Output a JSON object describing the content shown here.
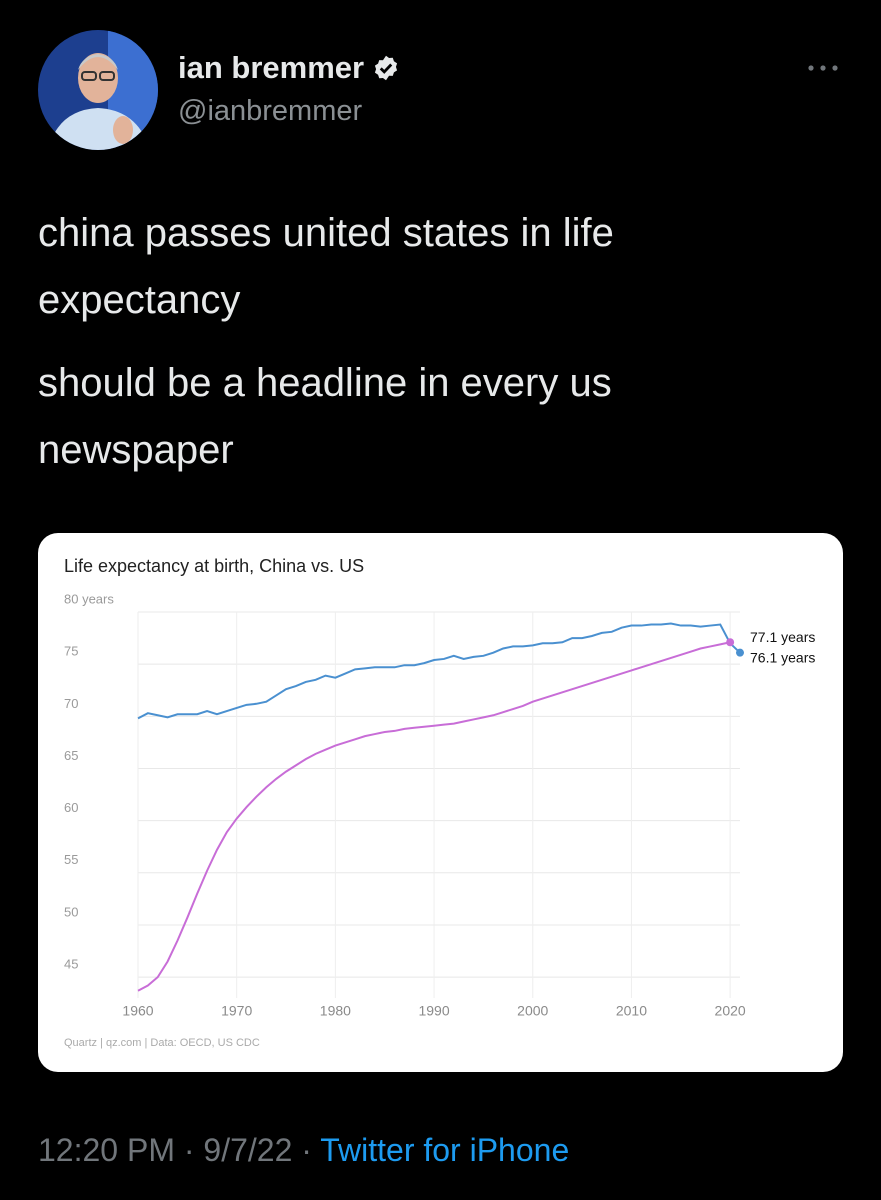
{
  "tweet": {
    "name": "ian bremmer",
    "handle": "@ianbremmer",
    "paragraphs": [
      "china passes united states in life expectancy",
      "should be a headline in every us newspaper"
    ],
    "time": "12:20 PM",
    "separator": "·",
    "date": "9/7/22",
    "source_app": "Twitter for iPhone"
  },
  "chart_data": {
    "type": "line",
    "title": "Life expectancy at birth, China vs. US",
    "source": "Quartz | qz.com | Data: OECD, US CDC",
    "x": [
      1960,
      1961,
      1962,
      1963,
      1964,
      1965,
      1966,
      1967,
      1968,
      1969,
      1970,
      1971,
      1972,
      1973,
      1974,
      1975,
      1976,
      1977,
      1978,
      1979,
      1980,
      1981,
      1982,
      1983,
      1984,
      1985,
      1986,
      1987,
      1988,
      1989,
      1990,
      1991,
      1992,
      1993,
      1994,
      1995,
      1996,
      1997,
      1998,
      1999,
      2000,
      2001,
      2002,
      2003,
      2004,
      2005,
      2006,
      2007,
      2008,
      2009,
      2010,
      2011,
      2012,
      2013,
      2014,
      2015,
      2016,
      2017,
      2018,
      2019,
      2020,
      2021
    ],
    "series": [
      {
        "color": "#4a90d0",
        "values": [
          69.8,
          70.3,
          70.1,
          69.9,
          70.2,
          70.2,
          70.2,
          70.5,
          70.2,
          70.5,
          70.8,
          71.1,
          71.2,
          71.4,
          72.0,
          72.6,
          72.9,
          73.3,
          73.5,
          73.9,
          73.7,
          74.1,
          74.5,
          74.6,
          74.7,
          74.7,
          74.7,
          74.9,
          74.9,
          75.1,
          75.4,
          75.5,
          75.8,
          75.5,
          75.7,
          75.8,
          76.1,
          76.5,
          76.7,
          76.7,
          76.8,
          77.0,
          77.0,
          77.1,
          77.5,
          77.5,
          77.7,
          78.0,
          78.1,
          78.5,
          78.7,
          78.7,
          78.8,
          78.8,
          78.9,
          78.7,
          78.7,
          78.6,
          78.7,
          78.8,
          77.0,
          76.1
        ],
        "value_labels": [
          null,
          null,
          null,
          null,
          null,
          null,
          null,
          null,
          null,
          null,
          null,
          null,
          null,
          null,
          null,
          null,
          null,
          null,
          null,
          null,
          null,
          null,
          null,
          null,
          null,
          null,
          null,
          null,
          null,
          null,
          null,
          null,
          null,
          null,
          null,
          null,
          null,
          null,
          null,
          null,
          null,
          null,
          null,
          null,
          null,
          null,
          null,
          null,
          null,
          null,
          null,
          null,
          null,
          null,
          null,
          null,
          null,
          null,
          null,
          null,
          null,
          "76.1 years"
        ]
      },
      {
        "color": "#c86dd7",
        "values": [
          43.7,
          44.2,
          45.0,
          46.5,
          48.5,
          50.7,
          53.0,
          55.2,
          57.2,
          58.9,
          60.2,
          61.3,
          62.3,
          63.2,
          64.0,
          64.7,
          65.3,
          65.9,
          66.4,
          66.8,
          67.2,
          67.5,
          67.8,
          68.1,
          68.3,
          68.5,
          68.6,
          68.8,
          68.9,
          69.0,
          69.1,
          69.2,
          69.3,
          69.5,
          69.7,
          69.9,
          70.1,
          70.4,
          70.7,
          71.0,
          71.4,
          71.7,
          72.0,
          72.3,
          72.6,
          72.9,
          73.2,
          73.5,
          73.8,
          74.1,
          74.4,
          74.7,
          75.0,
          75.3,
          75.6,
          75.9,
          76.2,
          76.5,
          76.7,
          76.9,
          77.1,
          null
        ],
        "value_labels": [
          null,
          null,
          null,
          null,
          null,
          null,
          null,
          null,
          null,
          null,
          null,
          null,
          null,
          null,
          null,
          null,
          null,
          null,
          null,
          null,
          null,
          null,
          null,
          null,
          null,
          null,
          null,
          null,
          null,
          null,
          null,
          null,
          null,
          null,
          null,
          null,
          null,
          null,
          null,
          null,
          null,
          null,
          null,
          null,
          null,
          null,
          null,
          null,
          null,
          null,
          null,
          null,
          null,
          null,
          null,
          null,
          null,
          null,
          null,
          null,
          "77.1 years",
          null
        ]
      }
    ],
    "xlim": [
      1960,
      2021
    ],
    "xticks": [
      1960,
      1970,
      1980,
      1990,
      2000,
      2010,
      2020
    ],
    "ylim": [
      43,
      80
    ],
    "yticks": [
      {
        "value": 80,
        "label": "80 years"
      },
      75,
      70,
      65,
      60,
      55,
      50,
      45
    ],
    "grid": true
  }
}
